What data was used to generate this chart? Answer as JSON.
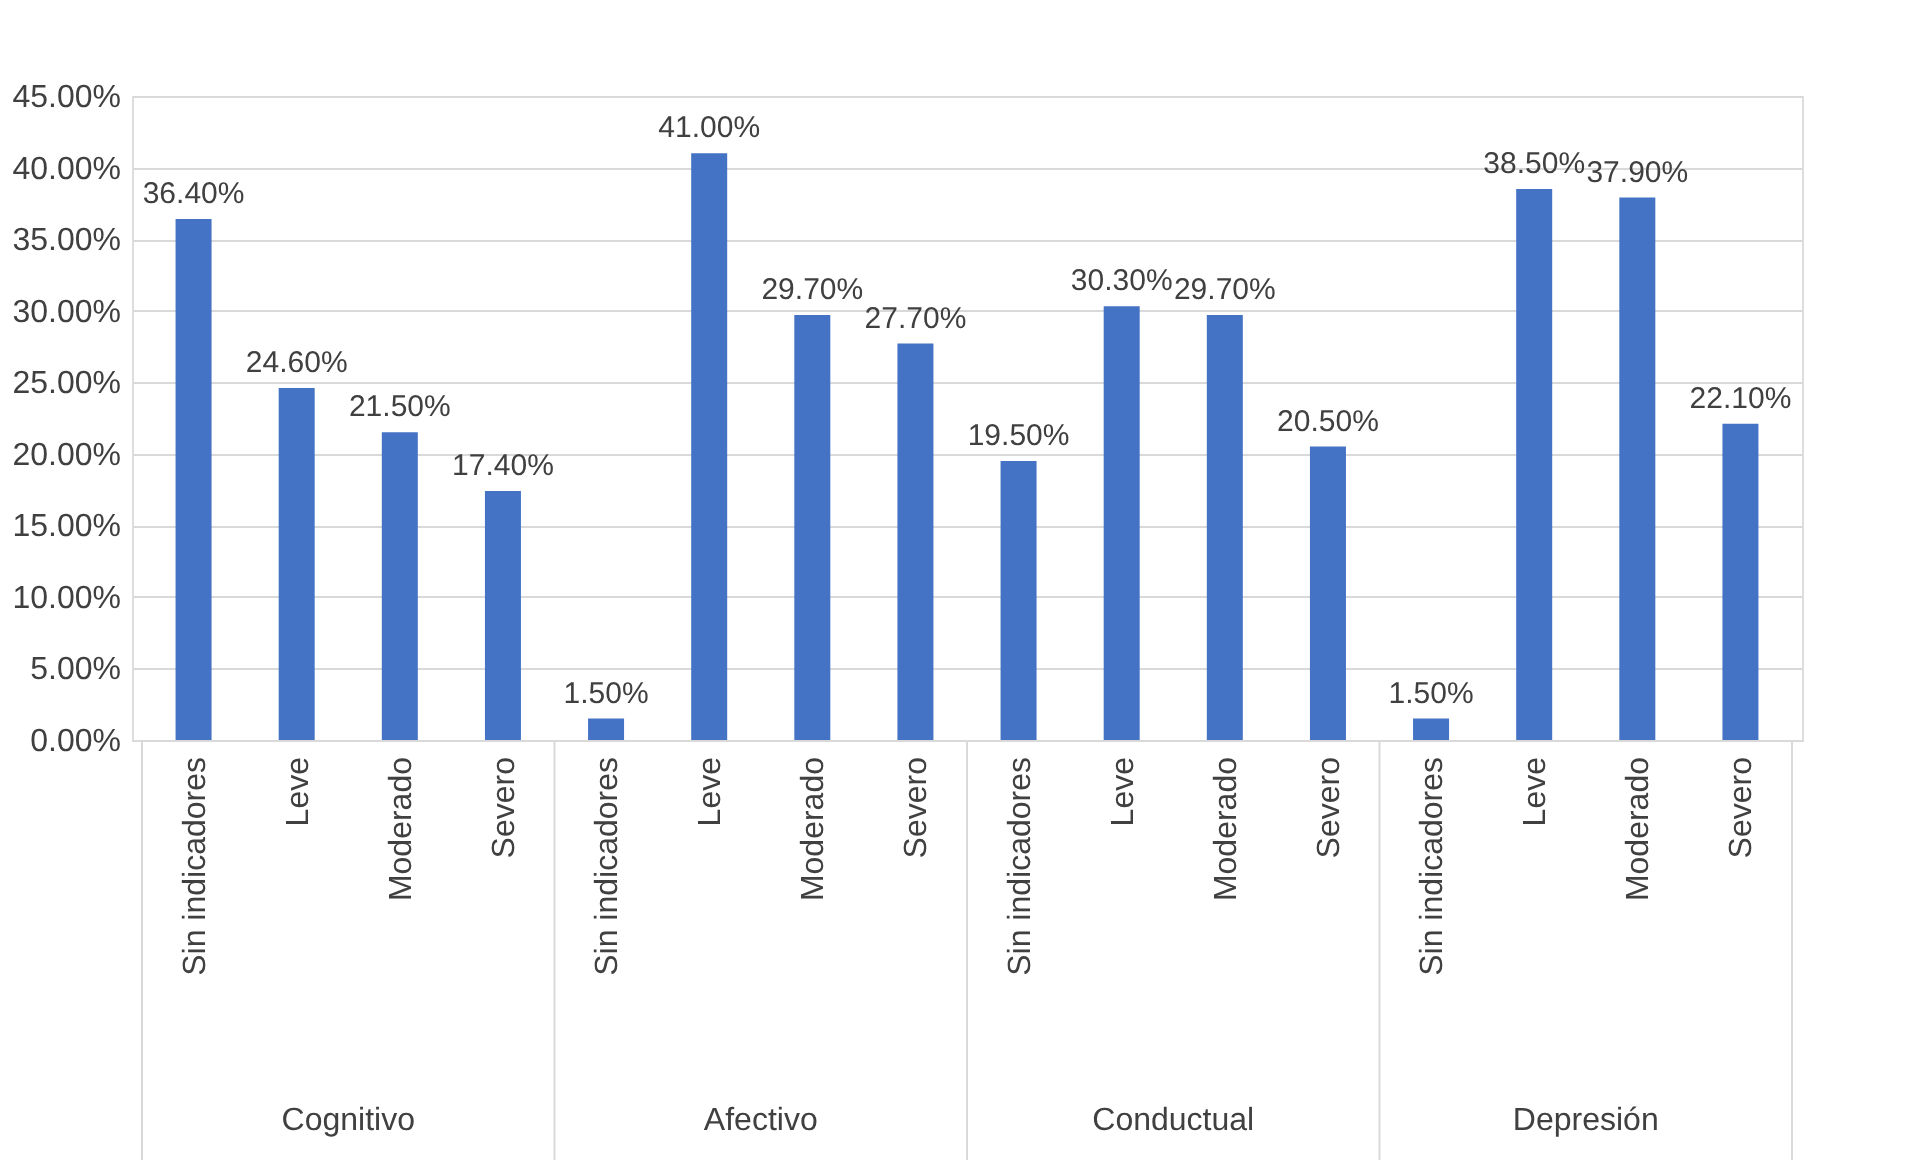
{
  "chart_data": {
    "type": "bar",
    "categories": [
      "Sin indicadores",
      "Leve",
      "Moderado",
      "Severo",
      "Sin indicadores",
      "Leve",
      "Moderado",
      "Severo",
      "Sin indicadores",
      "Leve",
      "Moderado",
      "Severo",
      "Sin indicadores",
      "Leve",
      "Moderado",
      "Severo"
    ],
    "values": [
      36.4,
      24.6,
      21.5,
      17.4,
      1.5,
      41.0,
      29.7,
      27.7,
      19.5,
      30.3,
      29.7,
      20.5,
      1.5,
      38.5,
      37.9,
      22.1
    ],
    "value_labels": [
      "36.40%",
      "24.60%",
      "21.50%",
      "17.40%",
      "1.50%",
      "41.00%",
      "29.70%",
      "27.70%",
      "19.50%",
      "30.30%",
      "29.70%",
      "20.50%",
      "1.50%",
      "38.50%",
      "37.90%",
      "22.10%"
    ],
    "color": "#4472c4",
    "ylim": [
      0,
      45
    ],
    "yticks": [
      {
        "value": 0,
        "label": "0.00%"
      },
      {
        "value": 5,
        "label": "5.00%"
      },
      {
        "value": 10,
        "label": "10.00%"
      },
      {
        "value": 15,
        "label": "15.00%"
      },
      {
        "value": 20,
        "label": "20.00%"
      },
      {
        "value": 25,
        "label": "25.00%"
      },
      {
        "value": 30,
        "label": "30.00%"
      },
      {
        "value": 35,
        "label": "35.00%"
      },
      {
        "value": 40,
        "label": "40.00%"
      },
      {
        "value": 45,
        "label": "45.00%"
      }
    ],
    "annotations": [
      "Cognitivo",
      "Afectivo",
      "Conductual",
      "Depresión"
    ],
    "grid": "y"
  }
}
